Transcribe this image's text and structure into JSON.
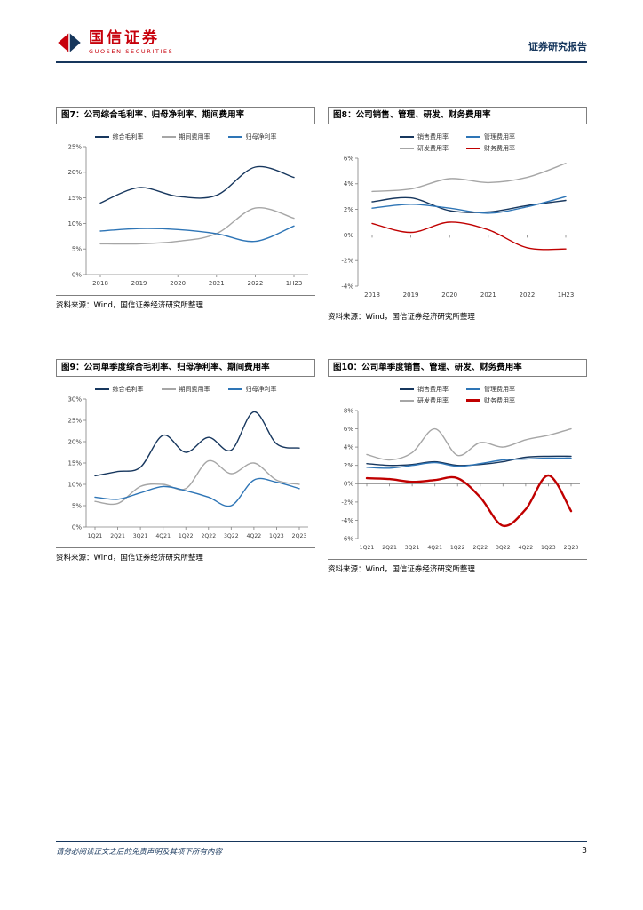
{
  "header": {
    "brand_cn": "国信证券",
    "brand_en": "GUOSEN SECURITIES",
    "report_type": "证券研究报告"
  },
  "footer": {
    "disclaimer": "请务必阅读正文之后的免责声明及其项下所有内容",
    "page_number": "3"
  },
  "colors": {
    "navy": "#17375e",
    "blue": "#2e75b6",
    "gray": "#a6a6a6",
    "red": "#c00000",
    "brand_red": "#c7000b",
    "header_line": "#16365c"
  },
  "chart_data": [
    {
      "type": "line",
      "fig_id": "7",
      "title": "图7：公司综合毛利率、归母净利率、期间费用率",
      "source": "资料来源：Wind，国信证券经济研究所整理",
      "categories": [
        "2018",
        "2019",
        "2020",
        "2021",
        "2022",
        "1H23"
      ],
      "ylim": [
        0,
        25
      ],
      "yticks": [
        0,
        5,
        10,
        15,
        20,
        25
      ],
      "series": [
        {
          "name": "综合毛利率",
          "color": "#17375e",
          "line_width": 1.4,
          "values": [
            14.0,
            17.0,
            15.3,
            15.5,
            21.0,
            19.0
          ]
        },
        {
          "name": "期间费用率",
          "color": "#a6a6a6",
          "line_width": 1.4,
          "values": [
            6.0,
            6.0,
            6.5,
            8.0,
            13.0,
            11.0
          ]
        },
        {
          "name": "归母净利率",
          "color": "#2e75b6",
          "line_width": 1.4,
          "values": [
            8.5,
            9.0,
            8.8,
            8.0,
            6.5,
            9.5
          ]
        }
      ]
    },
    {
      "type": "line",
      "fig_id": "8",
      "title": "图8：公司销售、管理、研发、财务费用率",
      "source": "资料来源：Wind，国信证券经济研究所整理",
      "categories": [
        "2018",
        "2019",
        "2020",
        "2021",
        "2022",
        "1H23"
      ],
      "ylim": [
        -4,
        6
      ],
      "yticks": [
        -4,
        -2,
        0,
        2,
        4,
        6
      ],
      "series": [
        {
          "name": "销售费用率",
          "color": "#17375e",
          "line_width": 1.4,
          "values": [
            2.6,
            2.9,
            1.9,
            1.8,
            2.3,
            2.7
          ]
        },
        {
          "name": "管理费用率",
          "color": "#2e75b6",
          "line_width": 1.4,
          "values": [
            2.1,
            2.4,
            2.1,
            1.7,
            2.2,
            3.0
          ]
        },
        {
          "name": "研发费用率",
          "color": "#a6a6a6",
          "line_width": 1.4,
          "values": [
            3.4,
            3.6,
            4.4,
            4.1,
            4.5,
            5.6
          ]
        },
        {
          "name": "财务费用率",
          "color": "#c00000",
          "line_width": 1.4,
          "values": [
            0.9,
            0.2,
            1.0,
            0.4,
            -1.0,
            -1.1
          ]
        }
      ]
    },
    {
      "type": "line",
      "fig_id": "9",
      "title": "图9：公司单季度综合毛利率、归母净利率、期间费用率",
      "source": "资料来源：Wind，国信证券经济研究所整理",
      "categories": [
        "1Q21",
        "2Q21",
        "3Q21",
        "4Q21",
        "1Q22",
        "2Q22",
        "3Q22",
        "4Q22",
        "1Q23",
        "2Q23"
      ],
      "ylim": [
        0,
        30
      ],
      "yticks": [
        0,
        5,
        10,
        15,
        20,
        25,
        30
      ],
      "series": [
        {
          "name": "综合毛利率",
          "color": "#17375e",
          "line_width": 1.4,
          "values": [
            12.0,
            13.0,
            14.0,
            21.5,
            17.5,
            21.0,
            18.0,
            27.0,
            19.5,
            18.5
          ]
        },
        {
          "name": "期间费用率",
          "color": "#a6a6a6",
          "line_width": 1.4,
          "values": [
            6.0,
            5.5,
            9.5,
            10.0,
            9.0,
            15.5,
            12.5,
            15.0,
            11.0,
            10.0
          ]
        },
        {
          "name": "归母净利率",
          "color": "#2e75b6",
          "line_width": 1.4,
          "values": [
            7.0,
            6.5,
            8.0,
            9.5,
            8.5,
            7.0,
            5.0,
            11.0,
            10.5,
            9.0
          ]
        }
      ]
    },
    {
      "type": "line",
      "fig_id": "10",
      "title": "图10：公司单季度销售、管理、研发、财务费用率",
      "source": "资料来源：Wind，国信证券经济研究所整理",
      "categories": [
        "1Q21",
        "2Q21",
        "3Q21",
        "4Q21",
        "1Q22",
        "2Q22",
        "3Q22",
        "4Q22",
        "1Q23",
        "2Q23"
      ],
      "ylim": [
        -6,
        8
      ],
      "yticks": [
        -6,
        -4,
        -2,
        0,
        2,
        4,
        6,
        8
      ],
      "series": [
        {
          "name": "销售费用率",
          "color": "#17375e",
          "line_width": 1.4,
          "values": [
            2.2,
            2.0,
            2.1,
            2.4,
            2.0,
            2.1,
            2.4,
            2.9,
            3.0,
            3.0
          ]
        },
        {
          "name": "管理费用率",
          "color": "#2e75b6",
          "line_width": 1.4,
          "values": [
            1.8,
            1.7,
            2.0,
            2.3,
            1.9,
            2.2,
            2.6,
            2.7,
            2.8,
            2.8
          ]
        },
        {
          "name": "研发费用率",
          "color": "#a6a6a6",
          "line_width": 1.4,
          "values": [
            3.2,
            2.6,
            3.4,
            6.0,
            3.1,
            4.5,
            4.0,
            4.8,
            5.3,
            6.0
          ]
        },
        {
          "name": "财务费用率",
          "color": "#c00000",
          "line_width": 2.4,
          "values": [
            0.6,
            0.5,
            0.2,
            0.4,
            0.6,
            -1.5,
            -4.6,
            -2.8,
            0.9,
            -3.0
          ]
        }
      ]
    }
  ]
}
